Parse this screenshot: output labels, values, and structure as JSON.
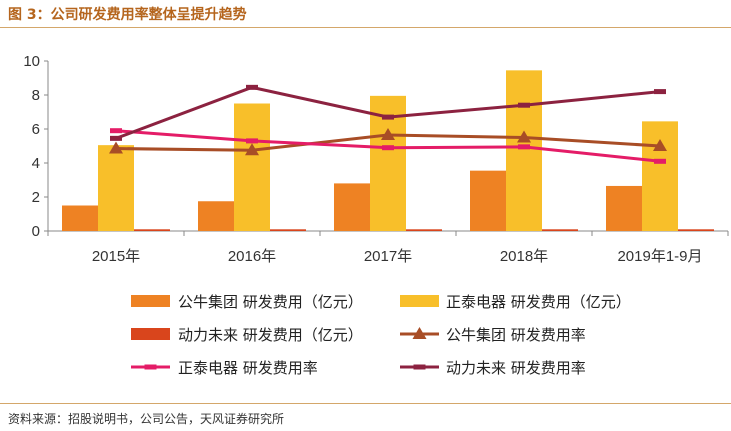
{
  "header": {
    "title": "图 3：公司研发费用率整体呈提升趋势"
  },
  "footer": {
    "source": "资料来源：招股说明书，公司公告，天风证券研究所"
  },
  "colors": {
    "gongniu_cost": "#ee8223",
    "zhengtai_cost": "#f8bf2a",
    "dongli_cost": "#d9451c",
    "gongniu_rate": "#a84d26",
    "zhengtai_rate": "#e41c67",
    "dongli_rate": "#8c2240",
    "axis": "#888888"
  },
  "chart_data": {
    "type": "bar",
    "categories": [
      "2015年",
      "2016年",
      "2017年",
      "2018年",
      "2019年1-9月"
    ],
    "ylim": [
      0,
      10
    ],
    "yticks": [
      0,
      2,
      4,
      6,
      8,
      10
    ],
    "grid": false,
    "legend_position": "bottom",
    "series": [
      {
        "name": "公牛集团 研发费用（亿元）",
        "kind": "bar",
        "color_key": "gongniu_cost",
        "values": [
          1.5,
          1.75,
          2.8,
          3.55,
          2.65
        ]
      },
      {
        "name": "正泰电器 研发费用（亿元）",
        "kind": "bar",
        "color_key": "zhengtai_cost",
        "values": [
          5.05,
          7.5,
          7.95,
          9.45,
          6.45
        ]
      },
      {
        "name": "动力未来 研发费用（亿元）",
        "kind": "bar",
        "color_key": "dongli_cost",
        "values": [
          0.1,
          0.1,
          0.1,
          0.1,
          0.1
        ]
      },
      {
        "name": "公牛集团 研发费用率",
        "kind": "line",
        "marker": "triangle",
        "color_key": "gongniu_rate",
        "values": [
          4.85,
          4.75,
          5.65,
          5.5,
          5.0
        ]
      },
      {
        "name": "正泰电器 研发费用率",
        "kind": "line",
        "marker": "dash",
        "color_key": "zhengtai_rate",
        "values": [
          5.9,
          5.3,
          4.9,
          4.95,
          4.1
        ]
      },
      {
        "name": "动力未来 研发费用率",
        "kind": "line",
        "marker": "dash",
        "color_key": "dongli_rate",
        "values": [
          5.45,
          8.45,
          6.7,
          7.4,
          8.2
        ]
      }
    ]
  }
}
